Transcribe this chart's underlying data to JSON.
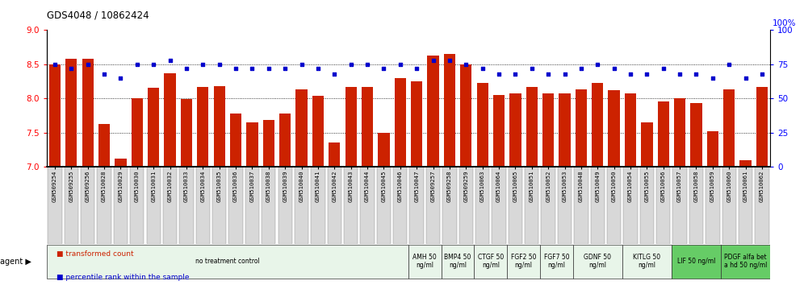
{
  "title": "GDS4048 / 10862424",
  "bar_color": "#cc2200",
  "dot_color": "#0000cc",
  "ylim_left": [
    7,
    9
  ],
  "ylim_right": [
    0,
    100
  ],
  "yticks_left": [
    7,
    7.5,
    8,
    8.5,
    9
  ],
  "yticks_right": [
    0,
    25,
    50,
    75,
    100
  ],
  "samples": [
    "GSM509254",
    "GSM509255",
    "GSM509256",
    "GSM510028",
    "GSM510029",
    "GSM510030",
    "GSM510031",
    "GSM510032",
    "GSM510033",
    "GSM510034",
    "GSM510035",
    "GSM510036",
    "GSM510037",
    "GSM510038",
    "GSM510039",
    "GSM510040",
    "GSM510041",
    "GSM510042",
    "GSM510043",
    "GSM510044",
    "GSM510045",
    "GSM510046",
    "GSM510047",
    "GSM509257",
    "GSM509258",
    "GSM509259",
    "GSM510063",
    "GSM510064",
    "GSM510065",
    "GSM510051",
    "GSM510052",
    "GSM510053",
    "GSM510048",
    "GSM510049",
    "GSM510050",
    "GSM510054",
    "GSM510055",
    "GSM510056",
    "GSM510057",
    "GSM510058",
    "GSM510059",
    "GSM510060",
    "GSM510061",
    "GSM510062"
  ],
  "bar_values": [
    8.5,
    8.58,
    8.58,
    7.62,
    7.12,
    8.0,
    8.15,
    8.37,
    7.99,
    8.17,
    8.18,
    7.78,
    7.65,
    7.68,
    7.78,
    8.13,
    8.04,
    7.35,
    8.17,
    8.17,
    7.5,
    8.3,
    8.25,
    8.62,
    8.65,
    8.5,
    8.22,
    8.05,
    8.07,
    8.17,
    8.07,
    8.07,
    8.13,
    8.22,
    8.12,
    8.07,
    7.65,
    7.95,
    8.0,
    7.93,
    7.52,
    8.13,
    7.1,
    8.17
  ],
  "dot_values": [
    75,
    72,
    75,
    68,
    65,
    75,
    75,
    78,
    72,
    75,
    75,
    72,
    72,
    72,
    72,
    75,
    72,
    68,
    75,
    75,
    72,
    75,
    72,
    78,
    78,
    75,
    72,
    68,
    68,
    72,
    68,
    68,
    72,
    75,
    72,
    68,
    68,
    72,
    68,
    68,
    65,
    75,
    65,
    68
  ],
  "agent_groups": [
    {
      "label": "no treatment control",
      "start": 0,
      "end": 22,
      "color": "#e8f5e9",
      "bright": false
    },
    {
      "label": "AMH 50\nng/ml",
      "start": 22,
      "end": 24,
      "color": "#e8f5e9",
      "bright": false
    },
    {
      "label": "BMP4 50\nng/ml",
      "start": 24,
      "end": 26,
      "color": "#e8f5e9",
      "bright": false
    },
    {
      "label": "CTGF 50\nng/ml",
      "start": 26,
      "end": 28,
      "color": "#e8f5e9",
      "bright": false
    },
    {
      "label": "FGF2 50\nng/ml",
      "start": 28,
      "end": 30,
      "color": "#e8f5e9",
      "bright": false
    },
    {
      "label": "FGF7 50\nng/ml",
      "start": 30,
      "end": 32,
      "color": "#e8f5e9",
      "bright": false
    },
    {
      "label": "GDNF 50\nng/ml",
      "start": 32,
      "end": 35,
      "color": "#e8f5e9",
      "bright": false
    },
    {
      "label": "KITLG 50\nng/ml",
      "start": 35,
      "end": 38,
      "color": "#e8f5e9",
      "bright": false
    },
    {
      "label": "LIF 50 ng/ml",
      "start": 38,
      "end": 41,
      "color": "#66cc66",
      "bright": true
    },
    {
      "label": "PDGF alfa bet\na hd 50 ng/ml",
      "start": 41,
      "end": 44,
      "color": "#66cc66",
      "bright": true
    }
  ],
  "bg_color": "#ffffff",
  "grid_color": "#000000",
  "tick_label_bg": "#d3d3d3"
}
